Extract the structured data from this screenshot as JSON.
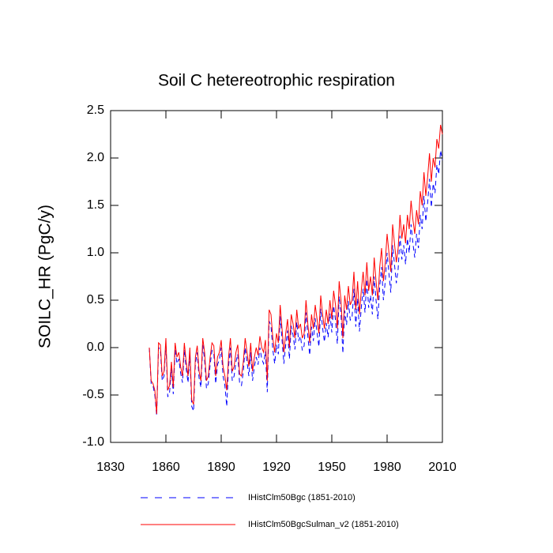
{
  "chart_data": {
    "type": "line",
    "title": "Soil C hetereotrophic respiration",
    "y_label": "SOILC_HR  (PgC/y)",
    "x": [
      1851,
      1852,
      1853,
      1854,
      1855,
      1856,
      1857,
      1858,
      1859,
      1860,
      1861,
      1862,
      1863,
      1864,
      1865,
      1866,
      1867,
      1868,
      1869,
      1870,
      1871,
      1872,
      1873,
      1874,
      1875,
      1876,
      1877,
      1878,
      1879,
      1880,
      1881,
      1882,
      1883,
      1884,
      1885,
      1886,
      1887,
      1888,
      1889,
      1890,
      1891,
      1892,
      1893,
      1894,
      1895,
      1896,
      1897,
      1898,
      1899,
      1900,
      1901,
      1902,
      1903,
      1904,
      1905,
      1906,
      1907,
      1908,
      1909,
      1910,
      1911,
      1912,
      1913,
      1914,
      1915,
      1916,
      1917,
      1918,
      1919,
      1920,
      1921,
      1922,
      1923,
      1924,
      1925,
      1926,
      1927,
      1928,
      1929,
      1930,
      1931,
      1932,
      1933,
      1934,
      1935,
      1936,
      1937,
      1938,
      1939,
      1940,
      1941,
      1942,
      1943,
      1944,
      1945,
      1946,
      1947,
      1948,
      1949,
      1950,
      1951,
      1952,
      1953,
      1954,
      1955,
      1956,
      1957,
      1958,
      1959,
      1960,
      1961,
      1962,
      1963,
      1964,
      1965,
      1966,
      1967,
      1968,
      1969,
      1970,
      1971,
      1972,
      1973,
      1974,
      1975,
      1976,
      1977,
      1978,
      1979,
      1980,
      1981,
      1982,
      1983,
      1984,
      1985,
      1986,
      1987,
      1988,
      1989,
      1990,
      1991,
      1992,
      1993,
      1994,
      1995,
      1996,
      1997,
      1998,
      1999,
      2000,
      2001,
      2002,
      2003,
      2004,
      2005,
      2006,
      2007,
      2008,
      2009,
      2010
    ],
    "series": [
      {
        "name": "IHistClm50Bgc (1851-2010)",
        "color": "#0000ff",
        "dash": true,
        "values": [
          0.0,
          -0.38,
          -0.4,
          -0.5,
          -0.72,
          0.0,
          -0.02,
          -0.35,
          -0.3,
          0.05,
          -0.52,
          -0.47,
          -0.22,
          -0.49,
          -0.02,
          -0.17,
          -0.12,
          -0.27,
          -0.37,
          -0.02,
          -0.22,
          -0.37,
          -0.07,
          -0.62,
          -0.67,
          -0.17,
          -0.05,
          -0.32,
          -0.42,
          0.03,
          -0.13,
          -0.43,
          -0.38,
          -0.18,
          -0.03,
          -0.06,
          -0.38,
          -0.18,
          -0.13,
          0.0,
          -0.3,
          -0.4,
          -0.62,
          -0.2,
          0.0,
          -0.35,
          -0.3,
          -0.15,
          -0.07,
          -0.38,
          -0.4,
          -0.25,
          0.0,
          -0.15,
          -0.3,
          -0.05,
          -0.35,
          -0.2,
          -0.1,
          -0.18,
          0.0,
          -0.12,
          -0.17,
          -0.04,
          -0.47,
          0.28,
          0.23,
          -0.02,
          -0.17,
          0.03,
          -0.07,
          0.33,
          0.08,
          -0.17,
          0.03,
          0.18,
          -0.12,
          0.23,
          0.13,
          -0.02,
          0.27,
          0.07,
          0.12,
          -0.03,
          0.02,
          0.37,
          0.12,
          -0.08,
          0.22,
          0.07,
          0.31,
          0.16,
          0.01,
          0.41,
          0.21,
          0.06,
          0.26,
          0.11,
          0.36,
          0.16,
          0.44,
          0.29,
          0.04,
          0.54,
          0.34,
          -0.06,
          0.39,
          0.24,
          0.49,
          0.29,
          0.32,
          0.62,
          0.22,
          0.52,
          0.17,
          0.42,
          0.62,
          0.37,
          0.72,
          0.42,
          0.55,
          0.35,
          0.75,
          0.5,
          0.3,
          0.65,
          0.85,
          0.5,
          0.7,
          1.0,
          0.78,
          0.58,
          1.08,
          0.88,
          0.68,
          0.83,
          1.18,
          0.93,
          1.08,
          0.88,
          1.15,
          1.0,
          1.3,
          1.1,
          0.95,
          1.2,
          1.05,
          1.4,
          1.25,
          1.6,
          1.33,
          1.53,
          1.78,
          1.48,
          1.73,
          1.63,
          1.93,
          1.83,
          2.08,
          1.98
        ]
      },
      {
        "name": "IHistClm50BgcSulman_v2 (1851-2010)",
        "color": "#ff0000",
        "dash": false,
        "values": [
          0.0,
          -0.35,
          -0.38,
          -0.45,
          -0.7,
          0.05,
          0.03,
          -0.3,
          -0.25,
          0.1,
          -0.45,
          -0.4,
          -0.15,
          -0.42,
          0.05,
          -0.1,
          -0.05,
          -0.2,
          -0.3,
          0.05,
          -0.15,
          -0.3,
          0.0,
          -0.55,
          -0.6,
          -0.1,
          0.02,
          -0.25,
          -0.35,
          0.1,
          -0.05,
          -0.35,
          -0.3,
          -0.1,
          0.05,
          0.02,
          -0.3,
          -0.1,
          -0.05,
          0.08,
          -0.2,
          -0.3,
          -0.45,
          -0.1,
          0.1,
          -0.25,
          -0.2,
          -0.05,
          0.03,
          -0.28,
          -0.3,
          -0.15,
          0.1,
          -0.05,
          -0.2,
          0.05,
          -0.25,
          -0.1,
          0.0,
          -0.08,
          0.12,
          0.0,
          -0.05,
          0.08,
          -0.35,
          0.4,
          0.35,
          0.1,
          -0.05,
          0.15,
          0.05,
          0.45,
          0.2,
          -0.05,
          0.15,
          0.3,
          0.0,
          0.35,
          0.25,
          0.1,
          0.4,
          0.2,
          0.25,
          0.1,
          0.15,
          0.5,
          0.25,
          0.05,
          0.35,
          0.2,
          0.45,
          0.3,
          0.15,
          0.55,
          0.35,
          0.2,
          0.4,
          0.25,
          0.5,
          0.3,
          0.6,
          0.45,
          0.2,
          0.7,
          0.5,
          0.1,
          0.55,
          0.4,
          0.65,
          0.45,
          0.5,
          0.8,
          0.4,
          0.7,
          0.35,
          0.6,
          0.8,
          0.55,
          0.9,
          0.6,
          0.75,
          0.55,
          0.95,
          0.7,
          0.5,
          0.85,
          1.05,
          0.7,
          0.9,
          1.2,
          1.0,
          0.8,
          1.3,
          1.1,
          0.9,
          1.05,
          1.4,
          1.15,
          1.3,
          1.1,
          1.4,
          1.25,
          1.55,
          1.35,
          1.2,
          1.45,
          1.3,
          1.65,
          1.5,
          1.85,
          1.6,
          1.8,
          2.05,
          1.75,
          2.0,
          1.9,
          2.2,
          2.1,
          2.35,
          2.25
        ]
      }
    ],
    "xlim": [
      1830,
      2010
    ],
    "xticks": [
      1830,
      1860,
      1890,
      1920,
      1950,
      1980,
      2010
    ],
    "ylim": [
      -1.0,
      2.5
    ],
    "yticks": [
      {
        "value": -1.0,
        "label": "-1.0"
      },
      -0.5,
      {
        "value": 0.0,
        "label": "0.0"
      },
      0.5,
      {
        "value": 1.0,
        "label": "1.0"
      },
      1.5,
      {
        "value": 2.0,
        "label": "2.0"
      },
      2.5
    ],
    "grid": false
  }
}
